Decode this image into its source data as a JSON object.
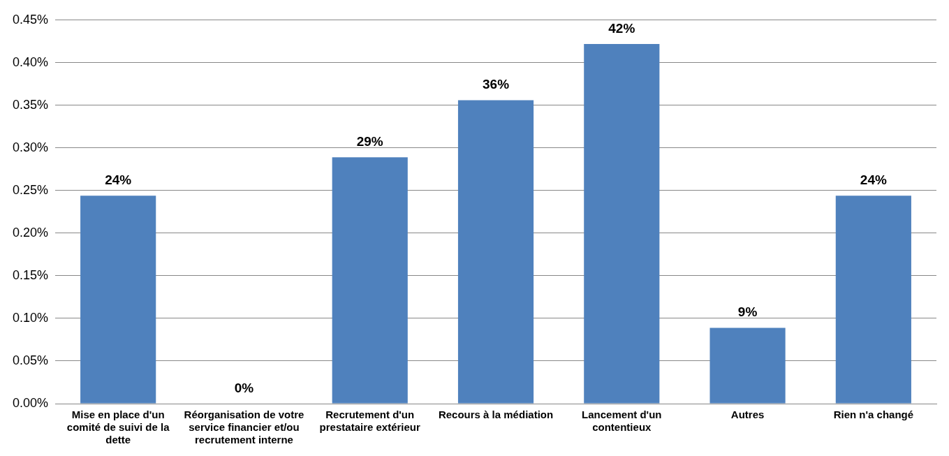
{
  "chart_data": {
    "type": "bar",
    "categories": [
      "Mise en place d'un comité de suivi de la dette",
      "Réorganisation de votre service financier et/ou recrutement interne",
      "Recrutement d'un prestataire extérieur",
      "Recours à la médiation",
      "Lancement d'un contentieux",
      "Autres",
      "Rien n'a changé"
    ],
    "values": [
      0.244,
      0,
      0.289,
      0.356,
      0.422,
      0.089,
      0.244
    ],
    "value_labels": [
      "24%",
      "0%",
      "29%",
      "36%",
      "42%",
      "9%",
      "24%"
    ],
    "color": "#4f81bd",
    "ylim": [
      0,
      0.45
    ],
    "yticks": [
      {
        "value": 0,
        "label": "0.00%"
      },
      {
        "value": 0.05,
        "label": "0.05%"
      },
      {
        "value": 0.1,
        "label": "0.10%"
      },
      {
        "value": 0.15,
        "label": "0.15%"
      },
      {
        "value": 0.2,
        "label": "0.20%"
      },
      {
        "value": 0.25,
        "label": "0.25%"
      },
      {
        "value": 0.3,
        "label": "0.30%"
      },
      {
        "value": 0.35,
        "label": "0.35%"
      },
      {
        "value": 0.4,
        "label": "0.40%"
      },
      {
        "value": 0.45,
        "label": "0.45%"
      }
    ],
    "grid": "y",
    "legend": false
  }
}
